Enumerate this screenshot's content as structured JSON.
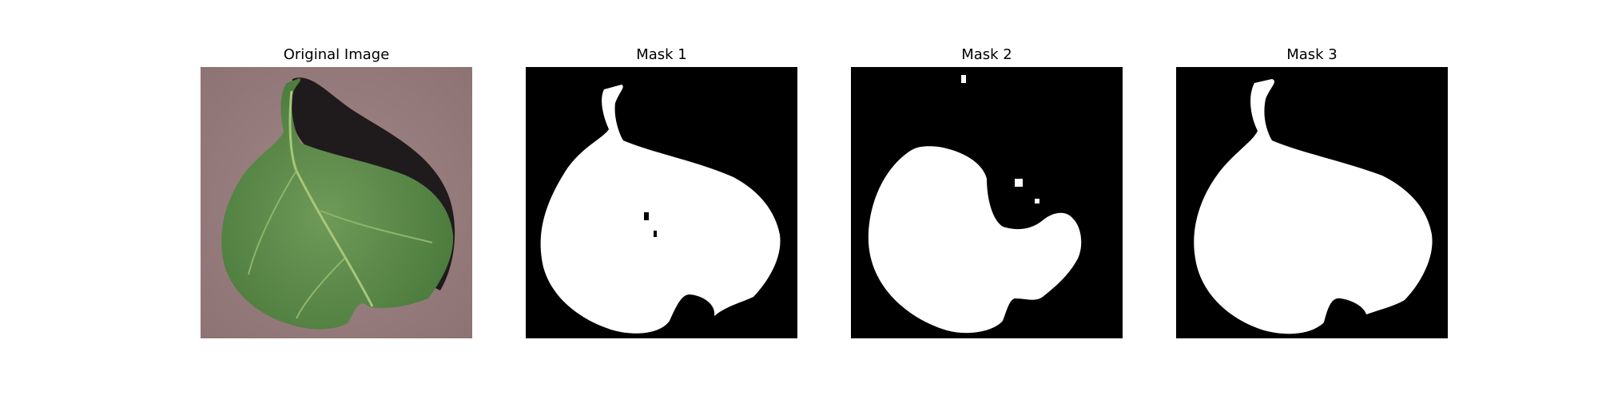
{
  "figure": {
    "panels": [
      {
        "title": "Original Image",
        "kind": "photo"
      },
      {
        "title": "Mask 1",
        "kind": "mask"
      },
      {
        "title": "Mask 2",
        "kind": "mask"
      },
      {
        "title": "Mask 3",
        "kind": "mask"
      }
    ]
  },
  "colors": {
    "background_paper": "#9c7f80",
    "leaf_green": "#5f8a4a",
    "leaf_dark": "#3f6a34",
    "shadow": "#1e1a1b",
    "mask_fg": "#ffffff",
    "mask_bg": "#000000"
  }
}
